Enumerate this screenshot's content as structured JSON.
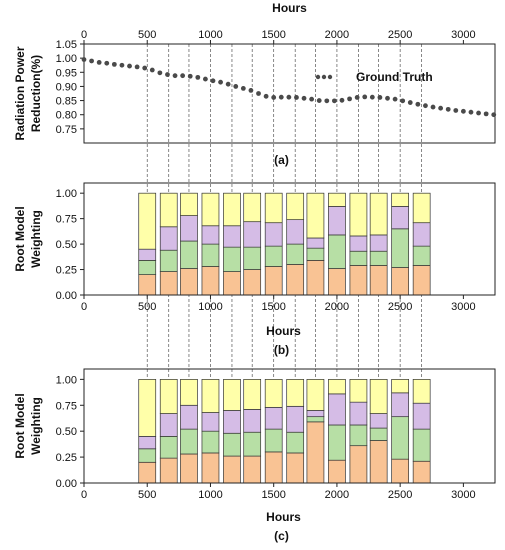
{
  "chart_data": [
    {
      "id": "a",
      "type": "scatter",
      "panel_label": "(a)",
      "title": "",
      "xlabel": "Hours",
      "ylabel_lines": [
        "Radiation Power",
        "Reduction(%)"
      ],
      "x_axis_position": "top",
      "xlim": [
        0,
        3250
      ],
      "ylim": [
        0.7,
        1.05
      ],
      "xticks": [
        0,
        500,
        1000,
        1500,
        2000,
        2500,
        3000
      ],
      "yticks": [
        0.75,
        0.8,
        0.85,
        0.9,
        0.95,
        1.0,
        1.05
      ],
      "ytick_labels": [
        "0.75",
        "0.80",
        "0.85",
        "0.90",
        "0.95",
        "1.00",
        "1.05"
      ],
      "legend": {
        "label": "Ground Truth",
        "position": "top-right"
      },
      "series": [
        {
          "name": "Ground Truth",
          "color": "#4a4a4a",
          "x": [
            0,
            60,
            120,
            180,
            240,
            300,
            360,
            420,
            480,
            540,
            600,
            660,
            720,
            780,
            840,
            900,
            960,
            1020,
            1080,
            1140,
            1200,
            1260,
            1320,
            1380,
            1440,
            1500,
            1560,
            1620,
            1680,
            1740,
            1800,
            1860,
            1920,
            1980,
            2040,
            2100,
            2160,
            2220,
            2280,
            2340,
            2400,
            2460,
            2520,
            2580,
            2640,
            2700,
            2760,
            2820,
            2880,
            2940,
            3000,
            3060,
            3120,
            3180,
            3240
          ],
          "y": [
            0.995,
            0.99,
            0.985,
            0.982,
            0.978,
            0.975,
            0.972,
            0.969,
            0.965,
            0.958,
            0.948,
            0.942,
            0.938,
            0.938,
            0.936,
            0.932,
            0.926,
            0.92,
            0.915,
            0.908,
            0.9,
            0.893,
            0.886,
            0.875,
            0.865,
            0.861,
            0.862,
            0.862,
            0.861,
            0.858,
            0.855,
            0.85,
            0.849,
            0.849,
            0.851,
            0.856,
            0.861,
            0.863,
            0.862,
            0.861,
            0.858,
            0.855,
            0.849,
            0.843,
            0.837,
            0.832,
            0.827,
            0.823,
            0.819,
            0.815,
            0.812,
            0.809,
            0.806,
            0.803,
            0.8
          ]
        }
      ]
    },
    {
      "id": "b",
      "type": "bar",
      "stacked": true,
      "panel_label": "(b)",
      "title": "",
      "xlabel": "Hours",
      "ylabel_lines": [
        "Root Model",
        "Weighting"
      ],
      "xlim": [
        0,
        3250
      ],
      "ylim": [
        0,
        1.1
      ],
      "xticks": [
        0,
        500,
        1000,
        1500,
        2000,
        2500,
        3000
      ],
      "yticks": [
        0,
        0.25,
        0.5,
        0.75,
        1.0
      ],
      "ytick_labels": [
        "0.00",
        "0.25",
        "0.50",
        "0.75",
        "1.00"
      ],
      "x": [
        500,
        670,
        830,
        1000,
        1170,
        1330,
        1500,
        1670,
        1830,
        2000,
        2170,
        2330,
        2500,
        2670
      ],
      "series": [
        {
          "color": "#f9c394",
          "values": [
            0.2,
            0.23,
            0.26,
            0.28,
            0.23,
            0.25,
            0.28,
            0.3,
            0.34,
            0.26,
            0.29,
            0.29,
            0.27,
            0.29
          ]
        },
        {
          "color": "#b7dfa5",
          "values": [
            0.14,
            0.21,
            0.27,
            0.22,
            0.24,
            0.22,
            0.2,
            0.2,
            0.12,
            0.33,
            0.14,
            0.14,
            0.38,
            0.19
          ]
        },
        {
          "color": "#d5bce6",
          "values": [
            0.11,
            0.23,
            0.25,
            0.18,
            0.21,
            0.25,
            0.23,
            0.24,
            0.1,
            0.28,
            0.15,
            0.16,
            0.22,
            0.23
          ]
        },
        {
          "color": "#ffffa9",
          "values": [
            0.55,
            0.33,
            0.22,
            0.32,
            0.32,
            0.28,
            0.29,
            0.26,
            0.44,
            0.13,
            0.42,
            0.41,
            0.13,
            0.29
          ]
        }
      ]
    },
    {
      "id": "c",
      "type": "bar",
      "stacked": true,
      "panel_label": "(c)",
      "title": "",
      "xlabel": "Hours",
      "ylabel_lines": [
        "Root Model",
        "Weighting"
      ],
      "xlim": [
        0,
        3250
      ],
      "ylim": [
        0,
        1.1
      ],
      "xticks": [
        0,
        500,
        1000,
        1500,
        2000,
        2500,
        3000
      ],
      "yticks": [
        0,
        0.25,
        0.5,
        0.75,
        1.0
      ],
      "ytick_labels": [
        "0.00",
        "0.25",
        "0.50",
        "0.75",
        "1.00"
      ],
      "x": [
        500,
        670,
        830,
        1000,
        1170,
        1330,
        1500,
        1670,
        1830,
        2000,
        2170,
        2330,
        2500,
        2670
      ],
      "series": [
        {
          "color": "#f9c394",
          "values": [
            0.2,
            0.24,
            0.28,
            0.29,
            0.26,
            0.26,
            0.3,
            0.29,
            0.59,
            0.22,
            0.36,
            0.41,
            0.23,
            0.21
          ]
        },
        {
          "color": "#b7dfa5",
          "values": [
            0.13,
            0.21,
            0.24,
            0.21,
            0.22,
            0.23,
            0.22,
            0.2,
            0.05,
            0.34,
            0.2,
            0.12,
            0.41,
            0.31
          ]
        },
        {
          "color": "#d5bce6",
          "values": [
            0.12,
            0.22,
            0.23,
            0.18,
            0.22,
            0.22,
            0.21,
            0.25,
            0.06,
            0.3,
            0.22,
            0.14,
            0.23,
            0.25
          ]
        },
        {
          "color": "#ffffa9",
          "values": [
            0.55,
            0.33,
            0.25,
            0.32,
            0.3,
            0.29,
            0.27,
            0.26,
            0.3,
            0.14,
            0.22,
            0.33,
            0.13,
            0.23
          ]
        }
      ]
    }
  ]
}
